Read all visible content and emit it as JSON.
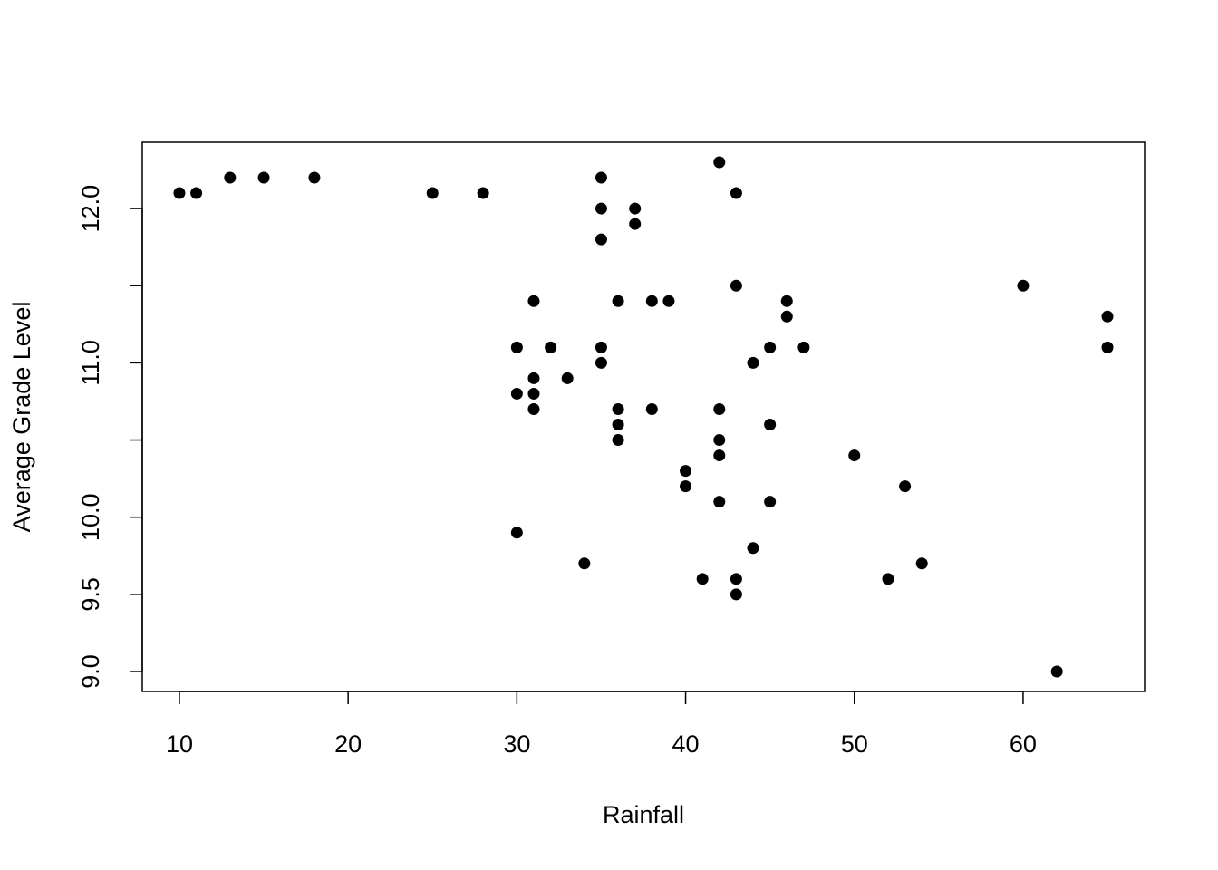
{
  "chart_data": {
    "type": "scatter",
    "x_label": "Rainfall",
    "y_label": "Average Grade Level",
    "color": "#000000",
    "x": [
      10,
      11,
      13,
      15,
      18,
      25,
      28,
      35,
      42,
      43,
      35,
      37,
      37,
      35,
      43,
      31,
      36,
      38,
      39,
      46,
      46,
      60,
      65,
      65,
      30,
      32,
      35,
      45,
      47,
      35,
      44,
      31,
      33,
      30,
      31,
      31,
      36,
      38,
      42,
      36,
      45,
      36,
      42,
      42,
      50,
      40,
      40,
      53,
      42,
      45,
      30,
      44,
      34,
      54,
      41,
      43,
      52,
      43,
      62
    ],
    "values": [
      12.1,
      12.1,
      12.2,
      12.2,
      12.2,
      12.1,
      12.1,
      12.2,
      12.3,
      12.1,
      12.0,
      12.0,
      11.9,
      11.8,
      11.5,
      11.4,
      11.4,
      11.4,
      11.4,
      11.4,
      11.3,
      11.5,
      11.3,
      11.1,
      11.1,
      11.1,
      11.1,
      11.1,
      11.1,
      11.0,
      11.0,
      10.9,
      10.9,
      10.8,
      10.8,
      10.7,
      10.7,
      10.7,
      10.7,
      10.6,
      10.6,
      10.5,
      10.5,
      10.4,
      10.4,
      10.3,
      10.2,
      10.2,
      10.1,
      10.1,
      9.9,
      9.8,
      9.7,
      9.7,
      9.6,
      9.6,
      9.6,
      9.5,
      9.0
    ],
    "xlim": [
      7.8,
      67.2
    ],
    "ylim": [
      8.871,
      12.429
    ],
    "xticks": [
      10,
      20,
      30,
      40,
      50,
      60
    ],
    "yticks": [
      {
        "value": 9,
        "label": "9.0"
      },
      9.5,
      {
        "value": 10,
        "label": "10.0"
      },
      {
        "value": 10.5,
        "label": null
      },
      {
        "value": 11,
        "label": "11.0"
      },
      {
        "value": 11.5,
        "label": null
      },
      {
        "value": 12,
        "label": "12.0"
      }
    ],
    "grid": false
  }
}
